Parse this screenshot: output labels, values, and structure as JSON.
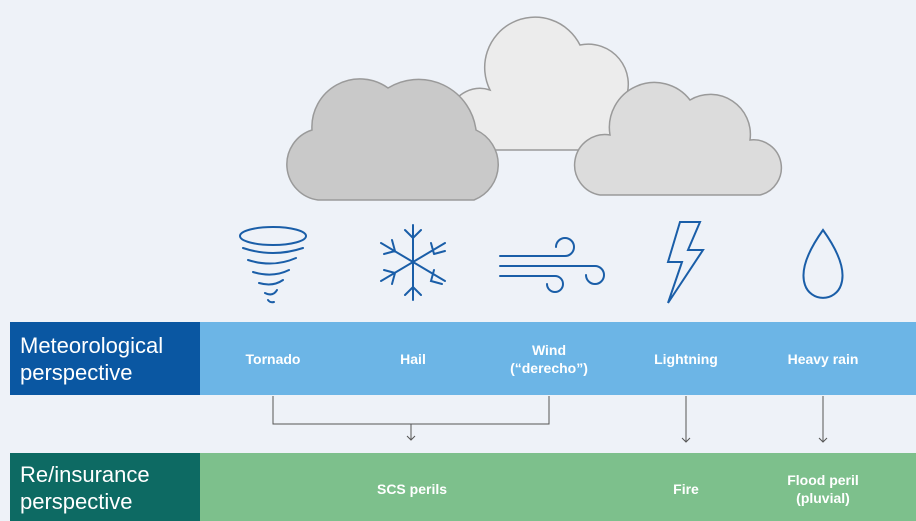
{
  "meteorological": {
    "title": [
      "Meteorological",
      "perspective"
    ],
    "perils": [
      [
        "Tornado"
      ],
      [
        "Hail"
      ],
      [
        "Wind",
        "(“derecho”)"
      ],
      [
        "Lightning"
      ],
      [
        "Heavy rain"
      ]
    ]
  },
  "insurance": {
    "title": [
      "Re/insurance",
      "perspective"
    ],
    "perils": [
      [
        "SCS perils"
      ],
      [
        "Fire"
      ],
      [
        "Flood peril",
        "(pluvial)"
      ]
    ]
  }
}
